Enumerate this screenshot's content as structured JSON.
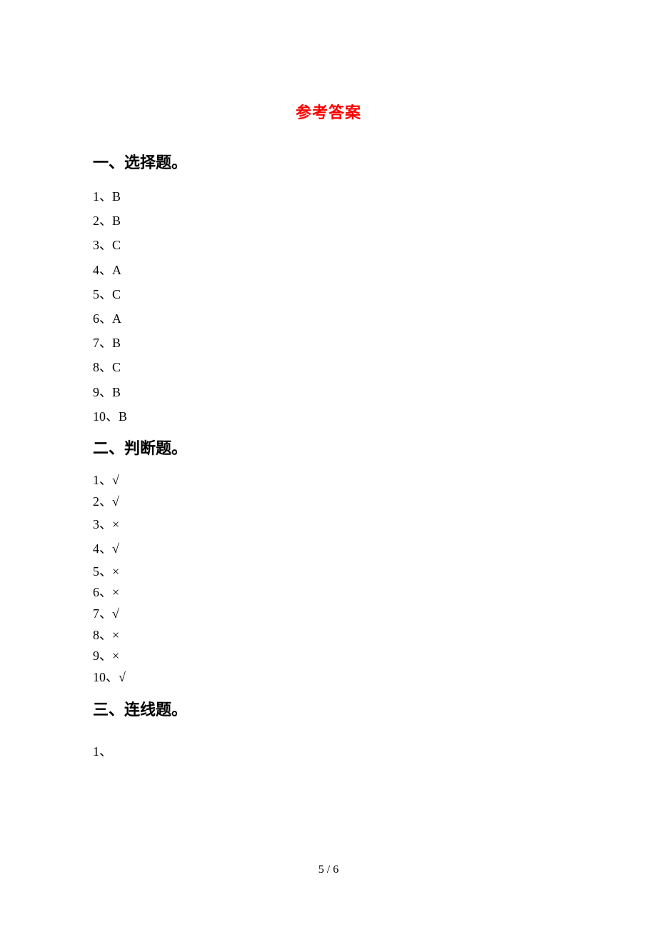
{
  "title": "参考答案",
  "sections": {
    "section1": {
      "heading": "一、选择题。",
      "answers": [
        "1、B",
        "2、B",
        "3、C",
        "4、A",
        "5、C",
        "6、A",
        "7、B",
        "8、C",
        "9、B",
        "10、B"
      ]
    },
    "section2": {
      "heading": "二、判断题。",
      "answers": [
        "1、√",
        "2、√",
        "3、×",
        "4、√",
        "5、×",
        "6、×",
        "7、√",
        "8、×",
        "9、×",
        "10、√"
      ]
    },
    "section3": {
      "heading": "三、连线题。",
      "item": "1、"
    }
  },
  "page_number": "5 / 6",
  "colors": {
    "title_color": "#ff0000",
    "text_color": "#000000",
    "background_color": "#ffffff"
  },
  "typography": {
    "title_fontsize": 22,
    "heading_fontsize": 22,
    "body_fontsize": 18,
    "page_number_fontsize": 16
  }
}
